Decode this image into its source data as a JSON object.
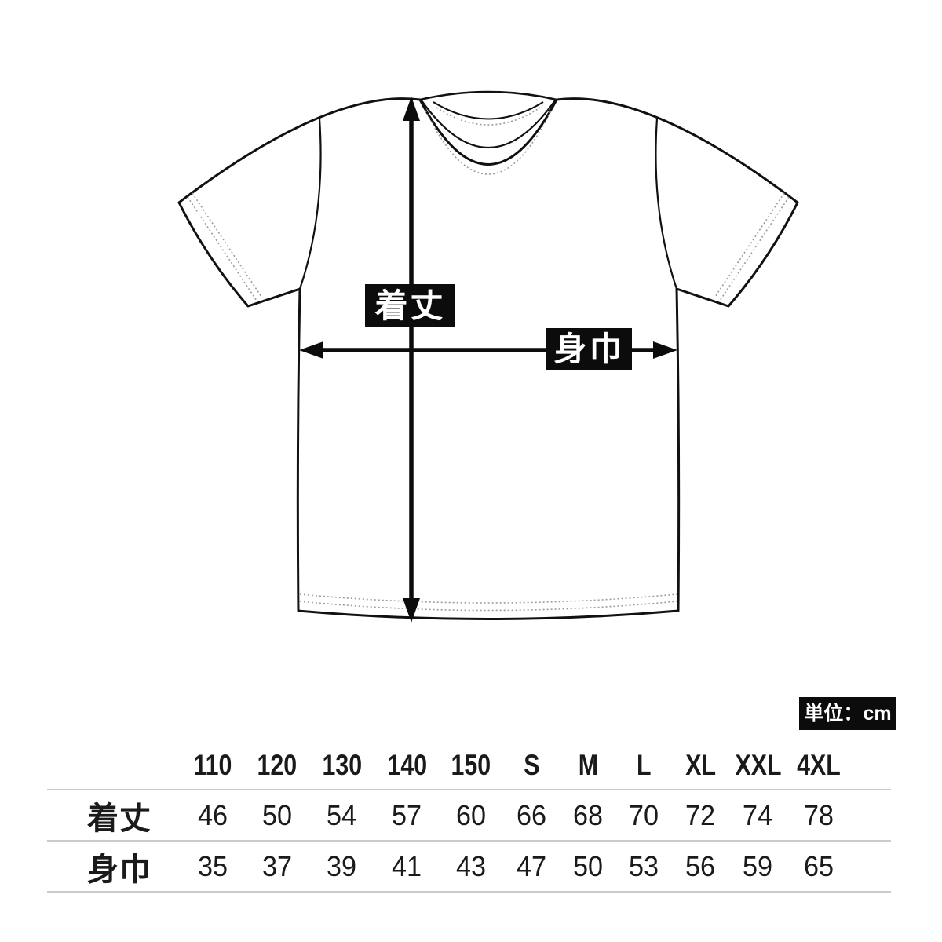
{
  "diagram": {
    "vertical_measure_label": "着丈",
    "horizontal_measure_label": "身巾"
  },
  "unit_badge": {
    "text": "単位：cm"
  },
  "table": {
    "size_headers": [
      "110",
      "120",
      "130",
      "140",
      "150",
      "S",
      "M",
      "L",
      "XL",
      "XXL",
      "4XL"
    ],
    "rows": [
      {
        "label": "着丈",
        "values": [
          "46",
          "50",
          "54",
          "57",
          "60",
          "66",
          "68",
          "70",
          "72",
          "74",
          "78"
        ]
      },
      {
        "label": "身巾",
        "values": [
          "35",
          "37",
          "39",
          "41",
          "43",
          "47",
          "50",
          "53",
          "56",
          "59",
          "65"
        ]
      }
    ]
  },
  "colors": {
    "ink": "#111111",
    "stitch_gray": "#9b9b9b",
    "rule_gray": "#cbcbcb",
    "badge_bg": "#0c0c0c",
    "badge_text": "#ffffff"
  }
}
